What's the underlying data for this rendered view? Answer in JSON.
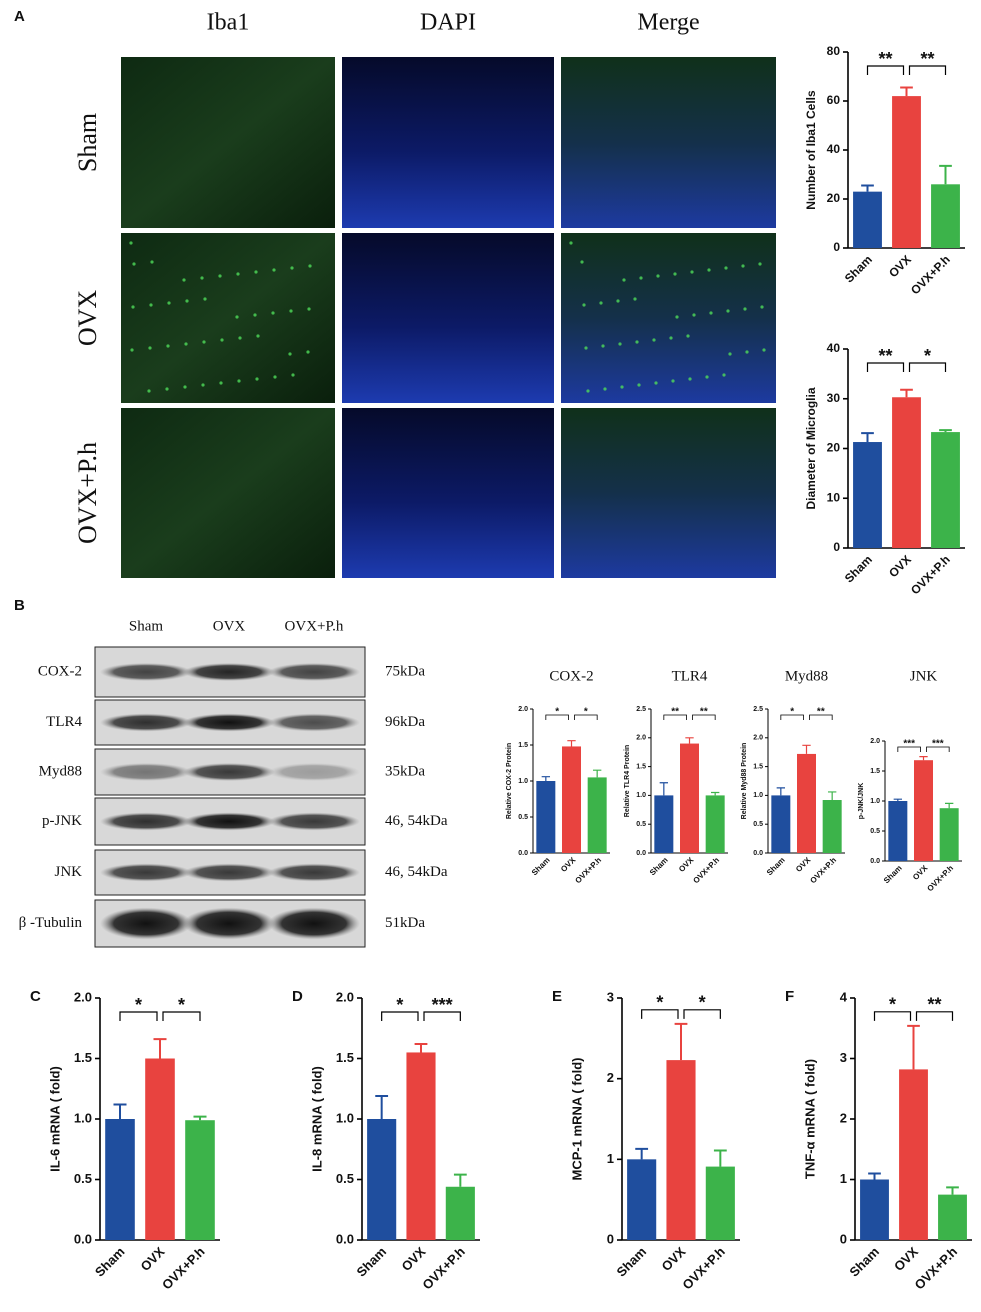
{
  "figure": {
    "panel_labels": [
      "A",
      "B"
    ],
    "columns": [
      "Iba1",
      "DAPI",
      "Merge"
    ],
    "rows": [
      "Sham",
      "OVX",
      "OVX+P.h"
    ],
    "blot": {
      "lanes": [
        "Sham",
        "OVX",
        "OVX+P.h"
      ],
      "proteins": [
        {
          "name": "COX-2",
          "size": "75kDa"
        },
        {
          "name": "TLR4",
          "size": "96kDa"
        },
        {
          "name": "Myd88",
          "size": "35kDa"
        },
        {
          "name": "p-JNK",
          "size": "46, 54kDa"
        },
        {
          "name": "JNK",
          "size": "46, 54kDa"
        },
        {
          "name": "β -Tubulin",
          "size": "51kDa"
        }
      ]
    }
  },
  "chart_data": [
    {
      "type": "bar",
      "ylabel": "Number of Iba1 Cells",
      "categories": [
        "Sham",
        "OVX",
        "OVX+P.h"
      ],
      "values": [
        23,
        62,
        26
      ],
      "errors": [
        2.5,
        3.5,
        7.5
      ],
      "colors": [
        "#1f4e9e",
        "#e8433f",
        "#3cb34a"
      ],
      "ylim": [
        0,
        80
      ],
      "yticks": [
        0,
        20,
        40,
        60,
        80
      ],
      "significance": [
        "**",
        "**"
      ]
    },
    {
      "type": "bar",
      "ylabel": "Diameter of Microglia",
      "categories": [
        "Sham",
        "OVX",
        "OVX+P.h"
      ],
      "values": [
        21.3,
        30.3,
        23.3
      ],
      "errors": [
        1.8,
        1.5,
        0.4
      ],
      "colors": [
        "#1f4e9e",
        "#e8433f",
        "#3cb34a"
      ],
      "ylim": [
        0,
        40
      ],
      "yticks": [
        0,
        10,
        20,
        30,
        40
      ],
      "significance": [
        "**",
        "*"
      ]
    },
    {
      "type": "bar",
      "title": "COX-2",
      "ylabel": "Relative COX-2 Protein",
      "categories": [
        "Sham",
        "OVX",
        "OVX+P.h"
      ],
      "values": [
        1.0,
        1.48,
        1.05
      ],
      "errors": [
        0.06,
        0.08,
        0.1
      ],
      "colors": [
        "#1f4e9e",
        "#e8433f",
        "#3cb34a"
      ],
      "ylim": [
        0,
        2
      ],
      "yticks": [
        {
          "value": 0,
          "label": "0.0"
        },
        0.5,
        {
          "value": 1,
          "label": "1.0"
        },
        1.5,
        {
          "value": 2,
          "label": "2.0"
        }
      ],
      "significance": [
        "*",
        "*"
      ]
    },
    {
      "type": "bar",
      "title": "TLR4",
      "ylabel": "Relative TLR4 Protein",
      "categories": [
        "Sham",
        "OVX",
        "OVX+P.h"
      ],
      "values": [
        1.0,
        1.9,
        1.0
      ],
      "errors": [
        0.22,
        0.1,
        0.05
      ],
      "colors": [
        "#1f4e9e",
        "#e8433f",
        "#3cb34a"
      ],
      "ylim": [
        0,
        2.5
      ],
      "yticks": [
        {
          "value": 0,
          "label": "0.0"
        },
        0.5,
        {
          "value": 1,
          "label": "1.0"
        },
        1.5,
        {
          "value": 2,
          "label": "2.0"
        },
        2.5
      ],
      "significance": [
        "**",
        "**"
      ]
    },
    {
      "type": "bar",
      "title": "Myd88",
      "ylabel": "Relative Myd88 Protein",
      "categories": [
        "Sham",
        "OVX",
        "OVX+P.h"
      ],
      "values": [
        1.0,
        1.72,
        0.92
      ],
      "errors": [
        0.13,
        0.15,
        0.14
      ],
      "colors": [
        "#1f4e9e",
        "#e8433f",
        "#3cb34a"
      ],
      "ylim": [
        0,
        2.5
      ],
      "yticks": [
        {
          "value": 0,
          "label": "0.0"
        },
        0.5,
        {
          "value": 1,
          "label": "1.0"
        },
        1.5,
        {
          "value": 2,
          "label": "2.0"
        },
        2.5
      ],
      "significance": [
        "*",
        "**"
      ]
    },
    {
      "type": "bar",
      "title": "JNK",
      "ylabel": "p-JNK/JNK",
      "categories": [
        "Sham",
        "OVX",
        "OVX+P.h"
      ],
      "values": [
        1.0,
        1.68,
        0.88
      ],
      "errors": [
        0.03,
        0.06,
        0.08
      ],
      "colors": [
        "#1f4e9e",
        "#e8433f",
        "#3cb34a"
      ],
      "ylim": [
        0,
        2
      ],
      "yticks": [
        {
          "value": 0,
          "label": "0.0"
        },
        0.5,
        {
          "value": 1,
          "label": "1.0"
        },
        1.5,
        {
          "value": 2,
          "label": "2.0"
        }
      ],
      "significance": [
        "***",
        "***"
      ]
    },
    {
      "type": "bar",
      "panel": "C",
      "ylabel": "IL-6 mRNA ( fold)",
      "categories": [
        "Sham",
        "OVX",
        "OVX+P.h"
      ],
      "values": [
        1.0,
        1.5,
        0.99
      ],
      "errors": [
        0.12,
        0.16,
        0.03
      ],
      "colors": [
        "#1f4e9e",
        "#e8433f",
        "#3cb34a"
      ],
      "ylim": [
        0,
        2
      ],
      "yticks": [
        {
          "value": 0,
          "label": "0.0"
        },
        0.5,
        {
          "value": 1,
          "label": "1.0"
        },
        1.5,
        {
          "value": 2,
          "label": "2.0"
        }
      ],
      "significance": [
        "*",
        "*"
      ]
    },
    {
      "type": "bar",
      "panel": "D",
      "ylabel": "IL-8 mRNA ( fold)",
      "categories": [
        "Sham",
        "OVX",
        "OVX+P.h"
      ],
      "values": [
        1.0,
        1.55,
        0.44
      ],
      "errors": [
        0.19,
        0.07,
        0.1
      ],
      "colors": [
        "#1f4e9e",
        "#e8433f",
        "#3cb34a"
      ],
      "ylim": [
        0,
        2
      ],
      "yticks": [
        {
          "value": 0,
          "label": "0.0"
        },
        0.5,
        {
          "value": 1,
          "label": "1.0"
        },
        1.5,
        {
          "value": 2,
          "label": "2.0"
        }
      ],
      "significance": [
        "*",
        "***"
      ]
    },
    {
      "type": "bar",
      "panel": "E",
      "ylabel": "MCP-1 mRNA ( fold)",
      "categories": [
        "Sham",
        "OVX",
        "OVX+P.h"
      ],
      "values": [
        1.0,
        2.23,
        0.91
      ],
      "errors": [
        0.13,
        0.45,
        0.2
      ],
      "colors": [
        "#1f4e9e",
        "#e8433f",
        "#3cb34a"
      ],
      "ylim": [
        0,
        3
      ],
      "yticks": [
        0,
        1,
        2,
        3
      ],
      "significance": [
        "*",
        "*"
      ]
    },
    {
      "type": "bar",
      "panel": "F",
      "ylabel": "TNF-α mRNA ( fold)",
      "categories": [
        "Sham",
        "OVX",
        "OVX+P.h"
      ],
      "values": [
        1.0,
        2.82,
        0.75
      ],
      "errors": [
        0.1,
        0.72,
        0.12
      ],
      "colors": [
        "#1f4e9e",
        "#e8433f",
        "#3cb34a"
      ],
      "ylim": [
        0,
        4
      ],
      "yticks": [
        0,
        1,
        2,
        3,
        4
      ],
      "significance": [
        "*",
        "**"
      ]
    }
  ]
}
